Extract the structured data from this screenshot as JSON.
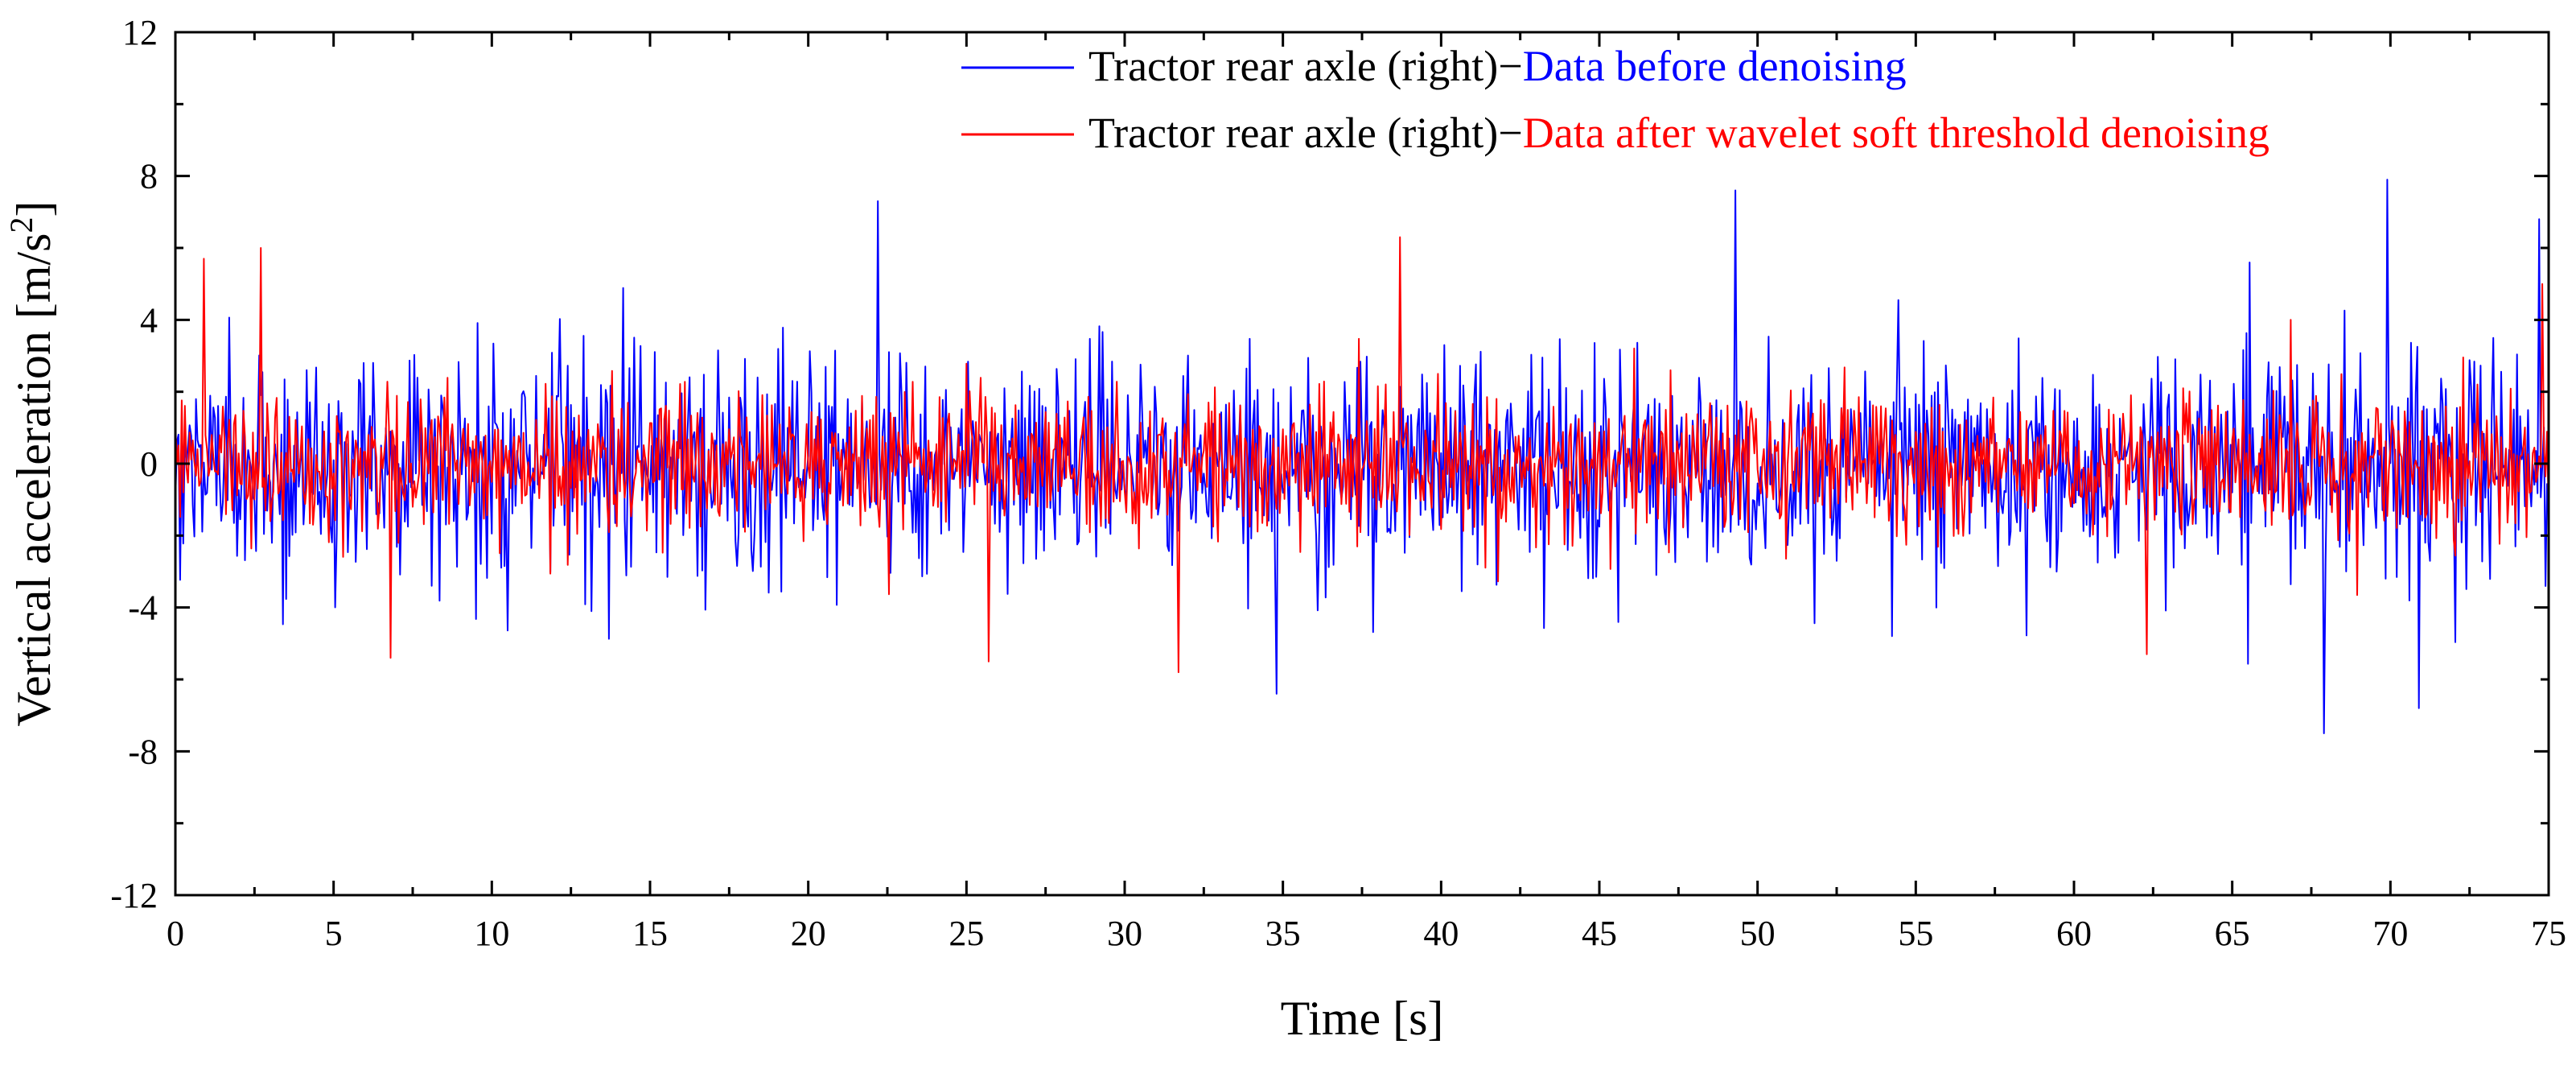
{
  "chart_data": {
    "type": "line",
    "title": "",
    "xlabel": "Time [s]",
    "ylabel": {
      "main": "Vertical acceleration [m/s",
      "superscript": "2",
      "closing": "]"
    },
    "xlim": [
      0,
      75
    ],
    "ylim": [
      -12,
      12
    ],
    "x_ticks": [
      0,
      5,
      10,
      15,
      20,
      25,
      30,
      35,
      40,
      45,
      50,
      55,
      60,
      65,
      70,
      75
    ],
    "x_tick_labels": [
      "0",
      "5",
      "10",
      "15",
      "20",
      "25",
      "30",
      "35",
      "40",
      "45",
      "50",
      "55",
      "60",
      "65",
      "70",
      "75"
    ],
    "y_ticks": [
      -12,
      -8,
      -4,
      0,
      4,
      8,
      12
    ],
    "y_tick_labels": [
      "-12",
      "-8",
      "-4",
      "0",
      "4",
      "8",
      "12"
    ],
    "grid": false,
    "legend_position": "top-right",
    "series": [
      {
        "name": "Data before denoising",
        "legend_prefix": "Tractor rear axle (right)−",
        "legend_suffix": "Data before denoising",
        "color": "#0000ff",
        "sample_interval_s": 0.05,
        "typical_envelope": [
          -4.5,
          5.0
        ],
        "peaks": [
          {
            "x": 22.2,
            "y": 7.3
          },
          {
            "x": 34.8,
            "y": -6.4
          },
          {
            "x": 49.3,
            "y": 7.6
          },
          {
            "x": 67.9,
            "y": -7.5
          },
          {
            "x": 69.9,
            "y": 7.9
          },
          {
            "x": 70.9,
            "y": -6.8
          },
          {
            "x": 74.7,
            "y": 6.8
          }
        ]
      },
      {
        "name": "Data after wavelet soft threshold denoising",
        "legend_prefix": "Tractor rear axle (right)−",
        "legend_suffix": "Data after wavelet soft threshold denoising",
        "color": "#ff0000",
        "sample_interval_s": 0.05,
        "typical_envelope": [
          -3.0,
          3.2
        ],
        "peaks": [
          {
            "x": 0.9,
            "y": 5.7
          },
          {
            "x": 2.7,
            "y": 6.0
          },
          {
            "x": 6.8,
            "y": -5.4
          },
          {
            "x": 25.7,
            "y": -5.5
          },
          {
            "x": 31.7,
            "y": -5.8
          },
          {
            "x": 38.7,
            "y": 6.3
          },
          {
            "x": 62.3,
            "y": -5.3
          },
          {
            "x": 74.8,
            "y": 5.0
          }
        ]
      }
    ]
  }
}
